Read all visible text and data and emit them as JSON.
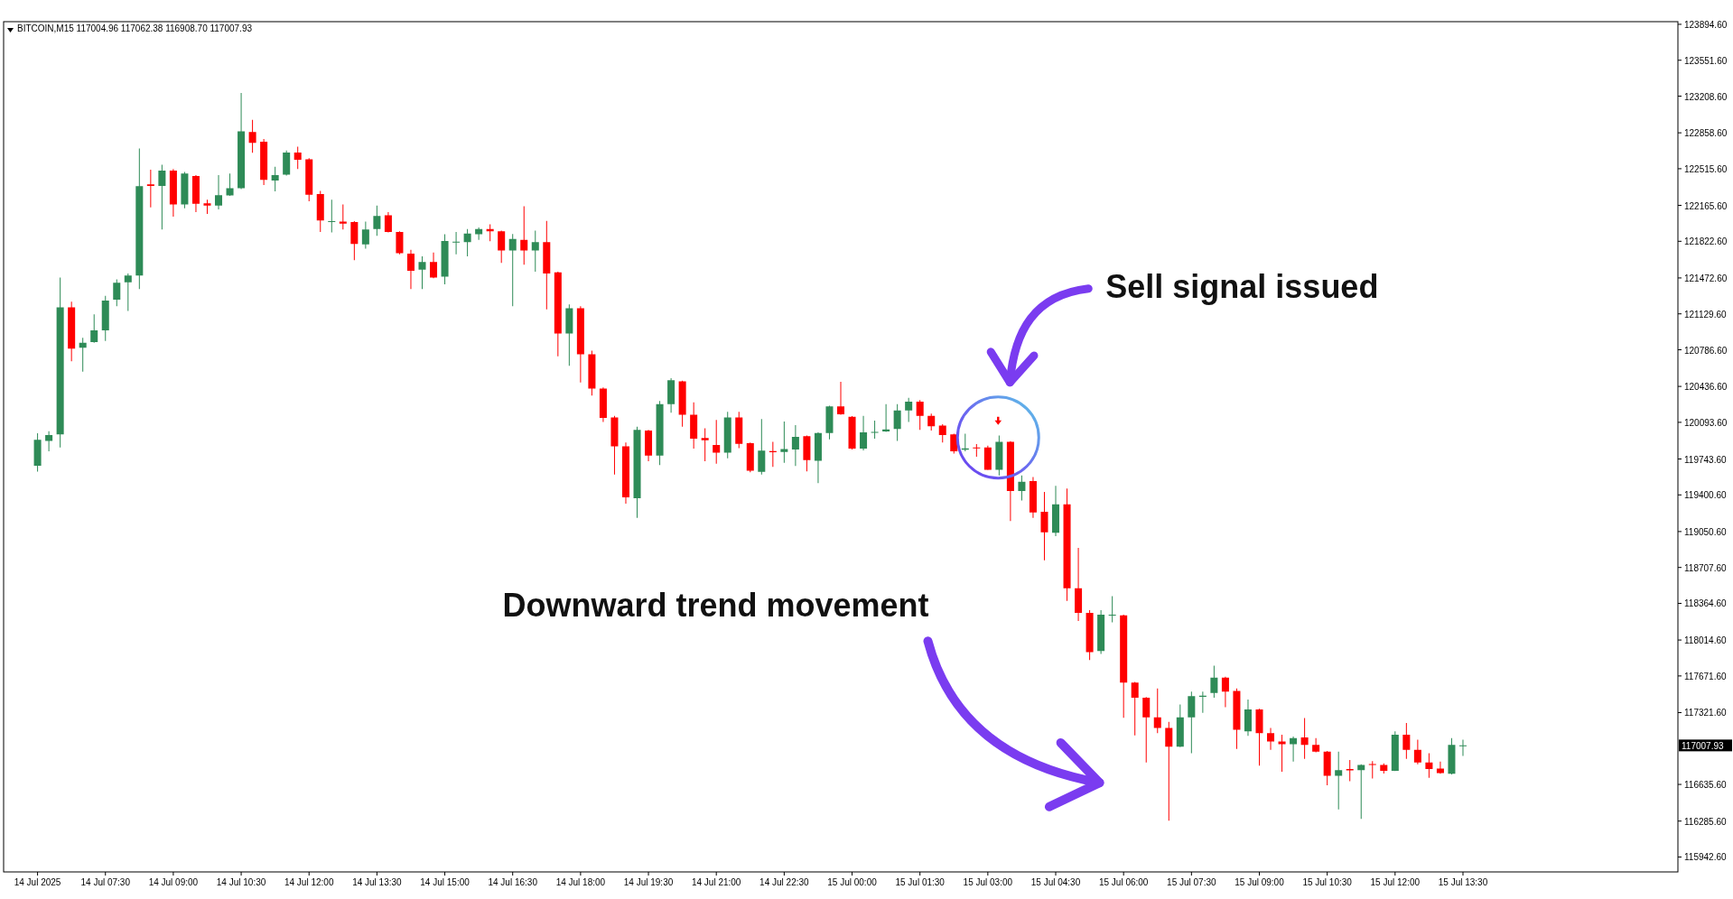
{
  "chart_data": {
    "type": "candlestick",
    "title": "BITCOIN,M15 117004.96 117062.38 116908.70 117007.93",
    "x": [
      "2025-07-14T06:00",
      "2025-07-14T06:15",
      "2025-07-14T06:30",
      "2025-07-14T06:45",
      "2025-07-14T07:00",
      "2025-07-14T07:15",
      "2025-07-14T07:30",
      "2025-07-14T07:45",
      "2025-07-14T08:00",
      "2025-07-14T08:15",
      "2025-07-14T08:30",
      "2025-07-14T08:45",
      "2025-07-14T09:00",
      "2025-07-14T09:15",
      "2025-07-14T09:30",
      "2025-07-14T09:45",
      "2025-07-14T10:00",
      "2025-07-14T10:15",
      "2025-07-14T10:30",
      "2025-07-14T10:45",
      "2025-07-14T11:00",
      "2025-07-14T11:15",
      "2025-07-14T11:30",
      "2025-07-14T11:45",
      "2025-07-14T12:00",
      "2025-07-14T12:15",
      "2025-07-14T12:30",
      "2025-07-14T12:45",
      "2025-07-14T13:00",
      "2025-07-14T13:15",
      "2025-07-14T13:30",
      "2025-07-14T13:45",
      "2025-07-14T14:00",
      "2025-07-14T14:15",
      "2025-07-14T14:30",
      "2025-07-14T14:45",
      "2025-07-14T15:00",
      "2025-07-14T15:15",
      "2025-07-14T15:30",
      "2025-07-14T15:45",
      "2025-07-14T16:00",
      "2025-07-14T16:15",
      "2025-07-14T16:30",
      "2025-07-14T16:45",
      "2025-07-14T17:00",
      "2025-07-14T17:15",
      "2025-07-14T17:30",
      "2025-07-14T17:45",
      "2025-07-14T18:00",
      "2025-07-14T18:15",
      "2025-07-14T18:30",
      "2025-07-14T18:45",
      "2025-07-14T19:00",
      "2025-07-14T19:15",
      "2025-07-14T19:30",
      "2025-07-14T19:45",
      "2025-07-14T20:00",
      "2025-07-14T20:15",
      "2025-07-14T20:30",
      "2025-07-14T20:45",
      "2025-07-14T21:00",
      "2025-07-14T21:15",
      "2025-07-14T21:30",
      "2025-07-14T21:45",
      "2025-07-14T22:00",
      "2025-07-14T22:15",
      "2025-07-14T22:30",
      "2025-07-14T22:45",
      "2025-07-14T23:00",
      "2025-07-14T23:15",
      "2025-07-14T23:30",
      "2025-07-14T23:45",
      "2025-07-15T00:00",
      "2025-07-15T00:15",
      "2025-07-15T00:30",
      "2025-07-15T00:45",
      "2025-07-15T01:00",
      "2025-07-15T01:15",
      "2025-07-15T01:30",
      "2025-07-15T01:45",
      "2025-07-15T02:00",
      "2025-07-15T02:15",
      "2025-07-15T02:30",
      "2025-07-15T02:45",
      "2025-07-15T03:00",
      "2025-07-15T03:15",
      "2025-07-15T03:30",
      "2025-07-15T03:45",
      "2025-07-15T04:00",
      "2025-07-15T04:15",
      "2025-07-15T04:30",
      "2025-07-15T04:45",
      "2025-07-15T05:00",
      "2025-07-15T05:15",
      "2025-07-15T05:30",
      "2025-07-15T05:45",
      "2025-07-15T06:00",
      "2025-07-15T06:15",
      "2025-07-15T06:30",
      "2025-07-15T06:45",
      "2025-07-15T07:00",
      "2025-07-15T07:15",
      "2025-07-15T07:30",
      "2025-07-15T07:45",
      "2025-07-15T08:00",
      "2025-07-15T08:15",
      "2025-07-15T08:30",
      "2025-07-15T08:45",
      "2025-07-15T09:00",
      "2025-07-15T09:15",
      "2025-07-15T09:30",
      "2025-07-15T09:45",
      "2025-07-15T10:00",
      "2025-07-15T10:15",
      "2025-07-15T10:30",
      "2025-07-15T10:45",
      "2025-07-15T11:00",
      "2025-07-15T11:15",
      "2025-07-15T11:30",
      "2025-07-15T11:45",
      "2025-07-15T12:00",
      "2025-07-15T12:15",
      "2025-07-15T12:30",
      "2025-07-15T12:45",
      "2025-07-15T13:00",
      "2025-07-15T13:15",
      "2025-07-15T13:30"
    ],
    "ohlc": [
      [
        119678,
        119990,
        119623,
        119927
      ],
      [
        119916,
        120008,
        119817,
        119971
      ],
      [
        119979,
        121477,
        119854,
        121191
      ],
      [
        121191,
        121246,
        120677,
        120798
      ],
      [
        120805,
        120901,
        120578,
        120853
      ],
      [
        120860,
        121125,
        120853,
        120971
      ],
      [
        120971,
        121301,
        120871,
        121257
      ],
      [
        121264,
        121459,
        121202,
        121426
      ],
      [
        121430,
        121514,
        121158,
        121496
      ],
      [
        121496,
        122708,
        121367,
        122348
      ],
      [
        122366,
        122506,
        122146,
        122352
      ],
      [
        122352,
        122553,
        121936,
        122498
      ],
      [
        122498,
        122513,
        122058,
        122175
      ],
      [
        122175,
        122484,
        122138,
        122469
      ],
      [
        122447,
        122454,
        122102,
        122182
      ],
      [
        122186,
        122219,
        122083,
        122164
      ],
      [
        122164,
        122454,
        122127,
        122263
      ],
      [
        122260,
        122469,
        122256,
        122330
      ],
      [
        122330,
        123240,
        122322,
        122873
      ],
      [
        122866,
        122983,
        122667,
        122763
      ],
      [
        122774,
        122800,
        122359,
        122410
      ],
      [
        122403,
        122535,
        122300,
        122454
      ],
      [
        122458,
        122689,
        122451,
        122671
      ],
      [
        122671,
        122726,
        122513,
        122601
      ],
      [
        122605,
        122616,
        122205,
        122267
      ],
      [
        122274,
        122304,
        121911,
        122021
      ],
      [
        122006,
        122219,
        121907,
        122014
      ],
      [
        122010,
        122175,
        121936,
        121992
      ],
      [
        122006,
        122014,
        121643,
        121797
      ],
      [
        121793,
        122010,
        121753,
        121936
      ],
      [
        121940,
        122164,
        121874,
        122065
      ],
      [
        122072,
        122102,
        121907,
        121911
      ],
      [
        121911,
        121918,
        121698,
        121709
      ],
      [
        121705,
        121742,
        121367,
        121540
      ],
      [
        121551,
        121679,
        121367,
        121624
      ],
      [
        121624,
        121716,
        121470,
        121477
      ],
      [
        121485,
        121889,
        121411,
        121826
      ],
      [
        121812,
        121911,
        121698,
        121819
      ],
      [
        121815,
        121940,
        121679,
        121896
      ],
      [
        121889,
        121955,
        121837,
        121940
      ],
      [
        121940,
        121984,
        121823,
        121918
      ],
      [
        121918,
        121925,
        121617,
        121734
      ],
      [
        121734,
        121892,
        121202,
        121845
      ],
      [
        121837,
        122157,
        121599,
        121734
      ],
      [
        121734,
        121925,
        121533,
        121815
      ],
      [
        121815,
        122017,
        121172,
        121514
      ],
      [
        121525,
        121533,
        120724,
        120941
      ],
      [
        120941,
        121220,
        120633,
        121184
      ],
      [
        121184,
        121202,
        120475,
        120743
      ],
      [
        120743,
        120779,
        120350,
        120415
      ],
      [
        120417,
        120426,
        120096,
        120135
      ],
      [
        120141,
        120156,
        119596,
        119865
      ],
      [
        119865,
        119901,
        119317,
        119377
      ],
      [
        119368,
        120051,
        119182,
        120021
      ],
      [
        120015,
        120021,
        119722,
        119776
      ],
      [
        119776,
        120297,
        119686,
        120267
      ],
      [
        120267,
        120516,
        120186,
        120495
      ],
      [
        120486,
        120492,
        120051,
        120165
      ],
      [
        120165,
        120285,
        119842,
        119937
      ],
      [
        119943,
        120036,
        119722,
        119922
      ],
      [
        119877,
        120117,
        119698,
        119805
      ],
      [
        119805,
        120195,
        119751,
        120141
      ],
      [
        120141,
        120195,
        119847,
        119889
      ],
      [
        119895,
        119901,
        119617,
        119632
      ],
      [
        119620,
        120126,
        119596,
        119823
      ],
      [
        119820,
        119907,
        119668,
        119808
      ],
      [
        119811,
        120102,
        119707,
        119838
      ],
      [
        119835,
        120066,
        119677,
        119955
      ],
      [
        119961,
        119967,
        119626,
        119733
      ],
      [
        119727,
        119997,
        119512,
        119991
      ],
      [
        119991,
        120252,
        119931,
        120246
      ],
      [
        120246,
        120480,
        120165,
        120171
      ],
      [
        120147,
        120153,
        119835,
        119842
      ],
      [
        119842,
        120156,
        119826,
        119997
      ],
      [
        119994,
        120111,
        119937,
        120003
      ],
      [
        120006,
        120267,
        120003,
        120027
      ],
      [
        120030,
        120267,
        119916,
        120207
      ],
      [
        120207,
        120327,
        120096,
        120291
      ],
      [
        120291,
        120306,
        120021,
        120156
      ],
      [
        120156,
        120177,
        120015,
        120057
      ],
      [
        120063,
        120075,
        119901,
        119973
      ],
      [
        119979,
        119985,
        119796,
        119817
      ],
      [
        119832,
        119985,
        119817,
        119844
      ],
      [
        119853,
        119886,
        119766,
        119844
      ],
      [
        119853,
        119871,
        119638,
        119641
      ],
      [
        119641,
        119967,
        119587,
        119907
      ],
      [
        119907,
        119913,
        119152,
        119437
      ],
      [
        119437,
        119587,
        119347,
        119527
      ],
      [
        119533,
        119572,
        119182,
        119233
      ],
      [
        119240,
        119430,
        118775,
        119044
      ],
      [
        119038,
        119488,
        119006,
        119311
      ],
      [
        119311,
        119462,
        118389,
        118508
      ],
      [
        118508,
        118894,
        118196,
        118273
      ],
      [
        118273,
        118299,
        117823,
        117900
      ],
      [
        117910,
        118299,
        117881,
        118257
      ],
      [
        118247,
        118434,
        118183,
        118257
      ],
      [
        118251,
        118257,
        117271,
        117608
      ],
      [
        117608,
        117614,
        117103,
        117463
      ],
      [
        117463,
        117470,
        116846,
        117277
      ],
      [
        117277,
        117553,
        117126,
        117174
      ],
      [
        117174,
        117232,
        116290,
        116997
      ],
      [
        116997,
        117399,
        116991,
        117277
      ],
      [
        117277,
        117521,
        116933,
        117479
      ],
      [
        117473,
        117521,
        117319,
        117483
      ],
      [
        117508,
        117769,
        117463,
        117656
      ],
      [
        117656,
        117663,
        117373,
        117521
      ],
      [
        117528,
        117553,
        116975,
        117158
      ],
      [
        117142,
        117447,
        117100,
        117351
      ],
      [
        117351,
        117357,
        116814,
        117126
      ],
      [
        117126,
        117174,
        116965,
        117046
      ],
      [
        117046,
        117110,
        116756,
        117020
      ],
      [
        117020,
        117094,
        116853,
        117078
      ],
      [
        117084,
        117270,
        116879,
        117013
      ],
      [
        117013,
        117078,
        116943,
        116949
      ],
      [
        116949,
        116956,
        116628,
        116718
      ],
      [
        116718,
        116949,
        116396,
        116772
      ],
      [
        116782,
        116869,
        116666,
        116769
      ],
      [
        116772,
        116827,
        116306,
        116821
      ],
      [
        116830,
        116859,
        116692,
        116821
      ],
      [
        116821,
        116837,
        116740,
        116766
      ],
      [
        116766,
        117142,
        116763,
        117110
      ],
      [
        117110,
        117222,
        116879,
        116965
      ],
      [
        116965,
        117062,
        116827,
        116846
      ],
      [
        116846,
        116933,
        116698,
        116782
      ],
      [
        116788,
        116853,
        116737,
        116743
      ],
      [
        116737,
        117078,
        116731,
        117013
      ],
      [
        117004.96,
        117062.38,
        116908.7,
        117007.93
      ]
    ],
    "colors": [
      "#2e8b57",
      "#2e8b57",
      "#2e8b57",
      "#ff0000",
      "#2e8b57",
      "#2e8b57",
      "#2e8b57",
      "#2e8b57",
      "#2e8b57",
      "#2e8b57",
      "#ff0000",
      "#2e8b57",
      "#ff0000",
      "#2e8b57",
      "#ff0000",
      "#ff0000",
      "#2e8b57",
      "#2e8b57",
      "#2e8b57",
      "#ff0000",
      "#ff0000",
      "#2e8b57",
      "#2e8b57",
      "#ff0000",
      "#ff0000",
      "#ff0000",
      "#2e8b57",
      "#ff0000",
      "#ff0000",
      "#2e8b57",
      "#2e8b57",
      "#ff0000",
      "#ff0000",
      "#ff0000",
      "#2e8b57",
      "#ff0000",
      "#2e8b57",
      "#2e8b57",
      "#2e8b57",
      "#2e8b57",
      "#ff0000",
      "#ff0000",
      "#2e8b57",
      "#ff0000",
      "#2e8b57",
      "#ff0000",
      "#ff0000",
      "#2e8b57",
      "#ff0000",
      "#ff0000",
      "#ff0000",
      "#ff0000",
      "#ff0000",
      "#2e8b57",
      "#ff0000",
      "#2e8b57",
      "#2e8b57",
      "#ff0000",
      "#ff0000",
      "#ff0000",
      "#ff0000",
      "#2e8b57",
      "#ff0000",
      "#ff0000",
      "#2e8b57",
      "#ff0000",
      "#2e8b57",
      "#2e8b57",
      "#ff0000",
      "#2e8b57",
      "#2e8b57",
      "#ff0000",
      "#ff0000",
      "#2e8b57",
      "#2e8b57",
      "#2e8b57",
      "#2e8b57",
      "#2e8b57",
      "#ff0000",
      "#ff0000",
      "#ff0000",
      "#ff0000",
      "#2e8b57",
      "#ff0000",
      "#ff0000",
      "#2e8b57",
      "#ff0000",
      "#2e8b57",
      "#ff0000",
      "#ff0000",
      "#2e8b57",
      "#ff0000",
      "#ff0000",
      "#ff0000",
      "#2e8b57",
      "#2e8b57",
      "#ff0000",
      "#ff0000",
      "#ff0000",
      "#ff0000",
      "#ff0000",
      "#2e8b57",
      "#2e8b57",
      "#2e8b57",
      "#2e8b57",
      "#ff0000",
      "#ff0000",
      "#2e8b57",
      "#ff0000",
      "#ff0000",
      "#ff0000",
      "#2e8b57",
      "#ff0000",
      "#ff0000",
      "#ff0000",
      "#2e8b57",
      "#ff0000",
      "#2e8b57",
      "#ff0000",
      "#ff0000",
      "#2e8b57",
      "#ff0000",
      "#ff0000",
      "#ff0000",
      "#ff0000",
      "#2e8b57",
      "#2e8b57"
    ],
    "xlim": [
      "2025-07-14T05:15",
      "2025-07-15T18:15"
    ],
    "xticks": [
      {
        "value": "2025-07-14T06:00",
        "label": "14 Jul 2025"
      },
      {
        "value": "2025-07-14T07:30",
        "label": "14 Jul 07:30"
      },
      {
        "value": "2025-07-14T09:00",
        "label": "14 Jul 09:00"
      },
      {
        "value": "2025-07-14T10:30",
        "label": "14 Jul 10:30"
      },
      {
        "value": "2025-07-14T12:00",
        "label": "14 Jul 12:00"
      },
      {
        "value": "2025-07-14T13:30",
        "label": "14 Jul 13:30"
      },
      {
        "value": "2025-07-14T15:00",
        "label": "14 Jul 15:00"
      },
      {
        "value": "2025-07-14T16:30",
        "label": "14 Jul 16:30"
      },
      {
        "value": "2025-07-14T18:00",
        "label": "14 Jul 18:00"
      },
      {
        "value": "2025-07-14T19:30",
        "label": "14 Jul 19:30"
      },
      {
        "value": "2025-07-14T21:00",
        "label": "14 Jul 21:00"
      },
      {
        "value": "2025-07-14T22:30",
        "label": "14 Jul 22:30"
      },
      {
        "value": "2025-07-15T00:00",
        "label": "15 Jul 00:00"
      },
      {
        "value": "2025-07-15T01:30",
        "label": "15 Jul 01:30"
      },
      {
        "value": "2025-07-15T03:00",
        "label": "15 Jul 03:00"
      },
      {
        "value": "2025-07-15T04:30",
        "label": "15 Jul 04:30"
      },
      {
        "value": "2025-07-15T06:00",
        "label": "15 Jul 06:00"
      },
      {
        "value": "2025-07-15T07:30",
        "label": "15 Jul 07:30"
      },
      {
        "value": "2025-07-15T09:00",
        "label": "15 Jul 09:00"
      },
      {
        "value": "2025-07-15T10:30",
        "label": "15 Jul 10:30"
      },
      {
        "value": "2025-07-15T12:00",
        "label": "15 Jul 12:00"
      },
      {
        "value": "2025-07-15T13:30",
        "label": "15 Jul 13:30"
      }
    ],
    "ylim": [
      115800,
      123920
    ],
    "yticks": [
      {
        "value": 123894.6,
        "label": "123894.60"
      },
      {
        "value": 123551.6,
        "label": "123551.60"
      },
      {
        "value": 123208.6,
        "label": "123208.60"
      },
      {
        "value": 122858.6,
        "label": "122858.60"
      },
      {
        "value": 122515.6,
        "label": "122515.60"
      },
      {
        "value": 122165.6,
        "label": "122165.60"
      },
      {
        "value": 121822.6,
        "label": "121822.60"
      },
      {
        "value": 121472.6,
        "label": "121472.60"
      },
      {
        "value": 121129.6,
        "label": "121129.60"
      },
      {
        "value": 120786.6,
        "label": "120786.60"
      },
      {
        "value": 120436.6,
        "label": "120436.60"
      },
      {
        "value": 120093.6,
        "label": "120093.60"
      },
      {
        "value": 119743.6,
        "label": "119743.60"
      },
      {
        "value": 119400.6,
        "label": "119400.60"
      },
      {
        "value": 119050.6,
        "label": "119050.60"
      },
      {
        "value": 118707.6,
        "label": "118707.60"
      },
      {
        "value": 118364.6,
        "label": "118364.60"
      },
      {
        "value": 118014.6,
        "label": "118014.60"
      },
      {
        "value": 117671.6,
        "label": "117671.60"
      },
      {
        "value": 117321.6,
        "label": "117321.60"
      },
      {
        "value": 116635.6,
        "label": "116635.60"
      },
      {
        "value": 116285.6,
        "label": "116285.60"
      },
      {
        "value": 115942.6,
        "label": "115942.60"
      }
    ],
    "annotations": [
      "Sell signal issued",
      "Downward trend movement",
      "117007.93"
    ]
  }
}
